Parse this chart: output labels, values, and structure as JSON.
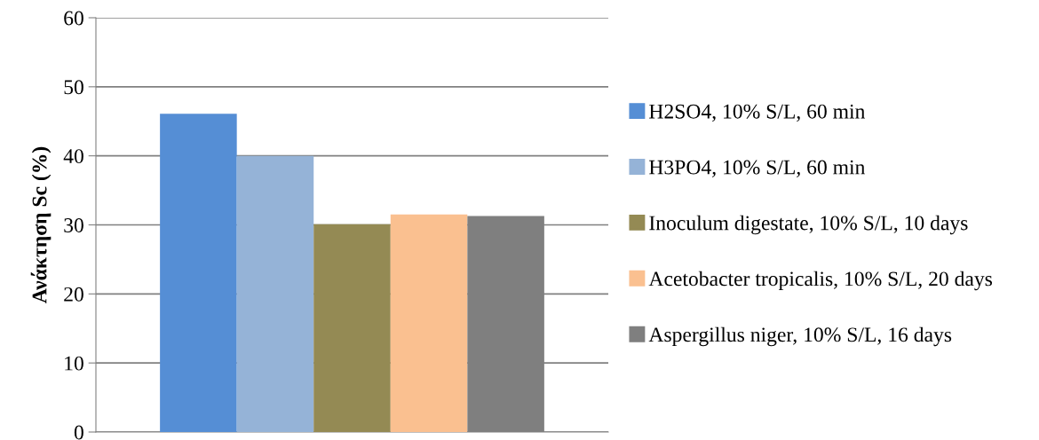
{
  "chart_data": {
    "type": "bar",
    "ylabel": "Ανάκτηση Sc (%)",
    "categories": [
      null
    ],
    "series": [
      {
        "name": "H2SO4, 10% S/L, 60 min",
        "color": "#558ed5",
        "values": [
          46.1
        ]
      },
      {
        "name": "H3PO4, 10% S/L, 60 min",
        "color": "#95b3d7",
        "values": [
          40
        ]
      },
      {
        "name": "Inoculum digestate, 10% S/L, 10 days",
        "color": "#948a54",
        "values": [
          30.1
        ]
      },
      {
        "name": "Acetobacter tropicalis, 10% S/L, 20 days",
        "color": "#fac090",
        "values": [
          31.5
        ]
      },
      {
        "name": "Aspergillus niger, 10% S/L, 16 days",
        "color": "#7f7f7f",
        "values": [
          31.3
        ]
      }
    ],
    "ylim": [
      0,
      60
    ],
    "yticks": [
      0,
      10,
      20,
      30,
      40,
      50,
      60
    ],
    "grid": "y",
    "legend": "right"
  }
}
